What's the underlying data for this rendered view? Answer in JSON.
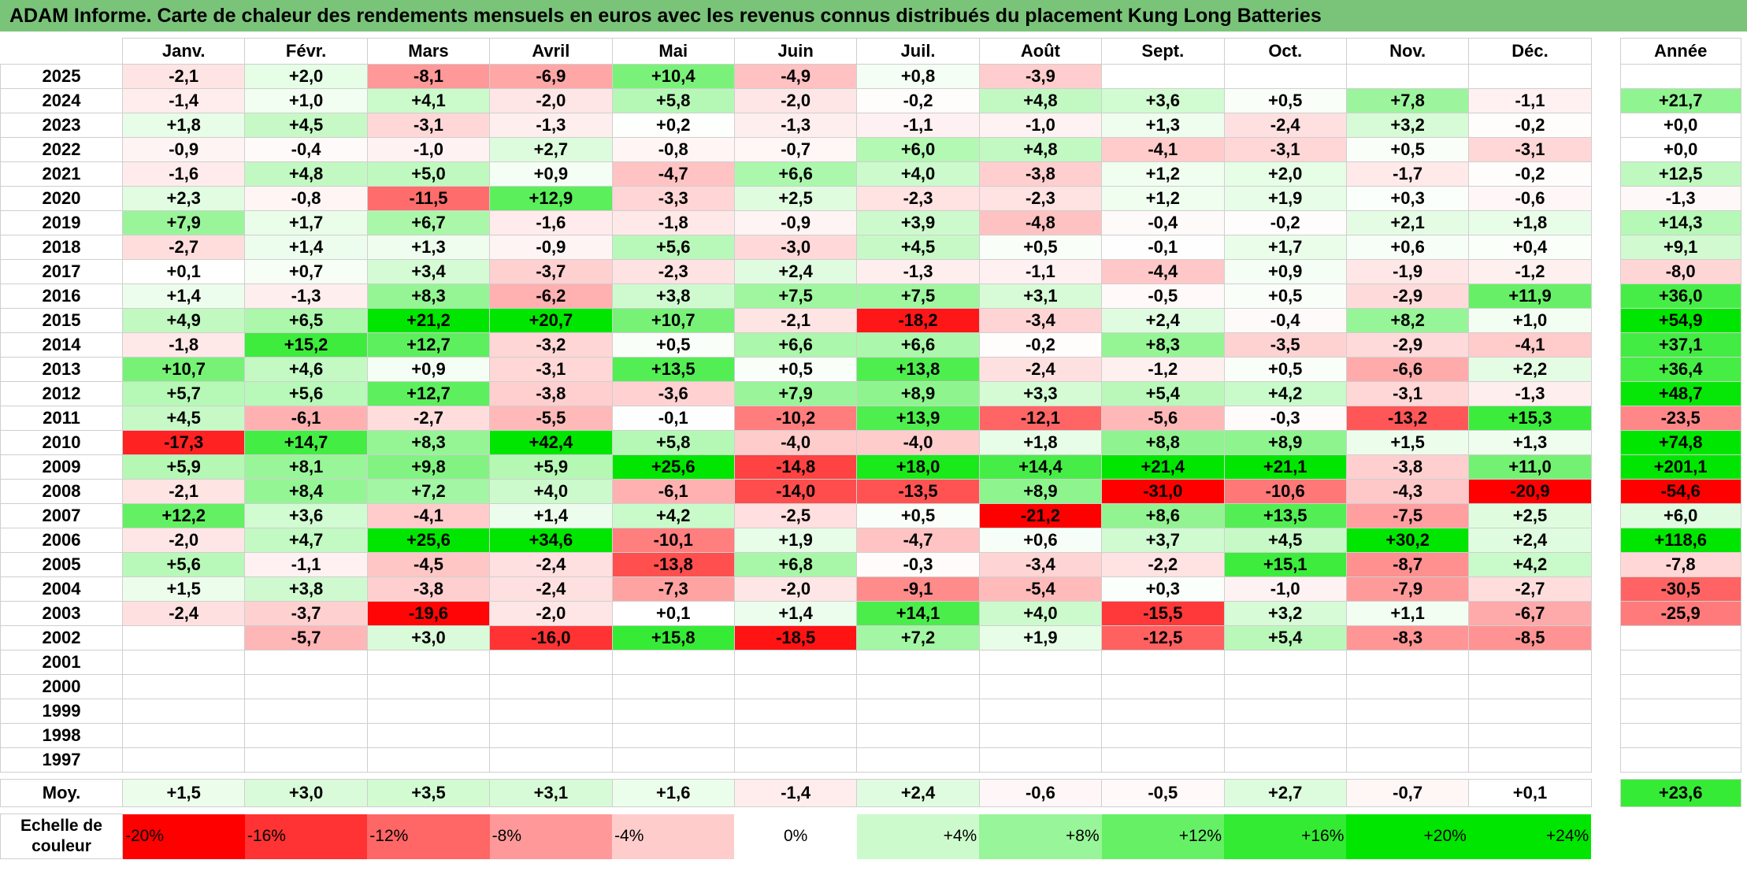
{
  "title": "ADAM Informe. Carte de chaleur des rendements mensuels en euros avec les revenus connus distribués du placement Kung Long Batteries",
  "chart_data": {
    "type": "heatmap",
    "title": "ADAM Informe. Carte de chaleur des rendements mensuels en euros avec les revenus connus distribués du placement Kung Long Batteries",
    "columns": [
      "Janv.",
      "Févr.",
      "Mars",
      "Avril",
      "Mai",
      "Juin",
      "Juil.",
      "Août",
      "Sept.",
      "Oct.",
      "Nov.",
      "Déc."
    ],
    "annual_label": "Année",
    "rows": [
      {
        "year": "2025",
        "values": [
          "-2,1",
          "+2,0",
          "-8,1",
          "-6,9",
          "+10,4",
          "-4,9",
          "+0,8",
          "-3,9",
          "",
          "",
          "",
          ""
        ],
        "annual": ""
      },
      {
        "year": "2024",
        "values": [
          "-1,4",
          "+1,0",
          "+4,1",
          "-2,0",
          "+5,8",
          "-2,0",
          "-0,2",
          "+4,8",
          "+3,6",
          "+0,5",
          "+7,8",
          "-1,1"
        ],
        "annual": "+21,7"
      },
      {
        "year": "2023",
        "values": [
          "+1,8",
          "+4,5",
          "-3,1",
          "-1,3",
          "+0,2",
          "-1,3",
          "-1,1",
          "-1,0",
          "+1,3",
          "-2,4",
          "+3,2",
          "-0,2"
        ],
        "annual": "+0,0"
      },
      {
        "year": "2022",
        "values": [
          "-0,9",
          "-0,4",
          "-1,0",
          "+2,7",
          "-0,8",
          "-0,7",
          "+6,0",
          "+4,8",
          "-4,1",
          "-3,1",
          "+0,5",
          "-3,1"
        ],
        "annual": "+0,0"
      },
      {
        "year": "2021",
        "values": [
          "-1,6",
          "+4,8",
          "+5,0",
          "+0,9",
          "-4,7",
          "+6,6",
          "+4,0",
          "-3,8",
          "+1,2",
          "+2,0",
          "-1,7",
          "-0,2"
        ],
        "annual": "+12,5"
      },
      {
        "year": "2020",
        "values": [
          "+2,3",
          "-0,8",
          "-11,5",
          "+12,9",
          "-3,3",
          "+2,5",
          "-2,3",
          "-2,3",
          "+1,2",
          "+1,9",
          "+0,3",
          "-0,6"
        ],
        "annual": "-1,3"
      },
      {
        "year": "2019",
        "values": [
          "+7,9",
          "+1,7",
          "+6,7",
          "-1,6",
          "-1,8",
          "-0,9",
          "+3,9",
          "-4,8",
          "-0,4",
          "-0,2",
          "+2,1",
          "+1,8"
        ],
        "annual": "+14,3"
      },
      {
        "year": "2018",
        "values": [
          "-2,7",
          "+1,4",
          "+1,3",
          "-0,9",
          "+5,6",
          "-3,0",
          "+4,5",
          "+0,5",
          "-0,1",
          "+1,7",
          "+0,6",
          "+0,4"
        ],
        "annual": "+9,1"
      },
      {
        "year": "2017",
        "values": [
          "+0,1",
          "+0,7",
          "+3,4",
          "-3,7",
          "-2,3",
          "+2,4",
          "-1,3",
          "-1,1",
          "-4,4",
          "+0,9",
          "-1,9",
          "-1,2"
        ],
        "annual": "-8,0"
      },
      {
        "year": "2016",
        "values": [
          "+1,4",
          "-1,3",
          "+8,3",
          "-6,2",
          "+3,8",
          "+7,5",
          "+7,5",
          "+3,1",
          "-0,5",
          "+0,5",
          "-2,9",
          "+11,9"
        ],
        "annual": "+36,0"
      },
      {
        "year": "2015",
        "values": [
          "+4,9",
          "+6,5",
          "+21,2",
          "+20,7",
          "+10,7",
          "-2,1",
          "-18,2",
          "-3,4",
          "+2,4",
          "-0,4",
          "+8,2",
          "+1,0"
        ],
        "annual": "+54,9"
      },
      {
        "year": "2014",
        "values": [
          "-1,8",
          "+15,2",
          "+12,7",
          "-3,2",
          "+0,5",
          "+6,6",
          "+6,6",
          "-0,2",
          "+8,3",
          "-3,5",
          "-2,9",
          "-4,1"
        ],
        "annual": "+37,1"
      },
      {
        "year": "2013",
        "values": [
          "+10,7",
          "+4,6",
          "+0,9",
          "-3,1",
          "+13,5",
          "+0,5",
          "+13,8",
          "-2,4",
          "-1,2",
          "+0,5",
          "-6,6",
          "+2,2"
        ],
        "annual": "+36,4"
      },
      {
        "year": "2012",
        "values": [
          "+5,7",
          "+5,6",
          "+12,7",
          "-3,8",
          "-3,6",
          "+7,9",
          "+8,9",
          "+3,3",
          "+5,4",
          "+4,2",
          "-3,1",
          "-1,3"
        ],
        "annual": "+48,7"
      },
      {
        "year": "2011",
        "values": [
          "+4,5",
          "-6,1",
          "-2,7",
          "-5,5",
          "-0,1",
          "-10,2",
          "+13,9",
          "-12,1",
          "-5,6",
          "-0,3",
          "-13,2",
          "+15,3"
        ],
        "annual": "-23,5"
      },
      {
        "year": "2010",
        "values": [
          "-17,3",
          "+14,7",
          "+8,3",
          "+42,4",
          "+5,8",
          "-4,0",
          "-4,0",
          "+1,8",
          "+8,8",
          "+8,9",
          "+1,5",
          "+1,3"
        ],
        "annual": "+74,8"
      },
      {
        "year": "2009",
        "values": [
          "+5,9",
          "+8,1",
          "+9,8",
          "+5,9",
          "+25,6",
          "-14,8",
          "+18,0",
          "+14,4",
          "+21,4",
          "+21,1",
          "-3,8",
          "+11,0"
        ],
        "annual": "+201,1"
      },
      {
        "year": "2008",
        "values": [
          "-2,1",
          "+8,4",
          "+7,2",
          "+4,0",
          "-6,1",
          "-14,0",
          "-13,5",
          "+8,9",
          "-31,0",
          "-10,6",
          "-4,3",
          "-20,9"
        ],
        "annual": "-54,6"
      },
      {
        "year": "2007",
        "values": [
          "+12,2",
          "+3,6",
          "-4,1",
          "+1,4",
          "+4,2",
          "-2,5",
          "+0,5",
          "-21,2",
          "+8,6",
          "+13,5",
          "-7,5",
          "+2,5"
        ],
        "annual": "+6,0"
      },
      {
        "year": "2006",
        "values": [
          "-2,0",
          "+4,7",
          "+25,6",
          "+34,6",
          "-10,1",
          "+1,9",
          "-4,7",
          "+0,6",
          "+3,7",
          "+4,5",
          "+30,2",
          "+2,4"
        ],
        "annual": "+118,6"
      },
      {
        "year": "2005",
        "values": [
          "+5,6",
          "-1,1",
          "-4,5",
          "-2,4",
          "-13,8",
          "+6,8",
          "-0,3",
          "-3,4",
          "-2,2",
          "+15,1",
          "-8,7",
          "+4,2"
        ],
        "annual": "-7,8"
      },
      {
        "year": "2004",
        "values": [
          "+1,5",
          "+3,8",
          "-3,8",
          "-2,4",
          "-7,3",
          "-2,0",
          "-9,1",
          "-5,4",
          "+0,3",
          "-1,0",
          "-7,9",
          "-2,7"
        ],
        "annual": "-30,5"
      },
      {
        "year": "2003",
        "values": [
          "-2,4",
          "-3,7",
          "-19,6",
          "-2,0",
          "+0,1",
          "+1,4",
          "+14,1",
          "+4,0",
          "-15,5",
          "+3,2",
          "+1,1",
          "-6,7"
        ],
        "annual": "-25,9"
      },
      {
        "year": "2002",
        "values": [
          "",
          "-5,7",
          "+3,0",
          "-16,0",
          "+15,8",
          "-18,5",
          "+7,2",
          "+1,9",
          "-12,5",
          "+5,4",
          "-8,3",
          "-8,5"
        ],
        "annual": ""
      },
      {
        "year": "2001",
        "values": [
          "",
          "",
          "",
          "",
          "",
          "",
          "",
          "",
          "",
          "",
          "",
          ""
        ],
        "annual": ""
      },
      {
        "year": "2000",
        "values": [
          "",
          "",
          "",
          "",
          "",
          "",
          "",
          "",
          "",
          "",
          "",
          ""
        ],
        "annual": ""
      },
      {
        "year": "1999",
        "values": [
          "",
          "",
          "",
          "",
          "",
          "",
          "",
          "",
          "",
          "",
          "",
          ""
        ],
        "annual": ""
      },
      {
        "year": "1998",
        "values": [
          "",
          "",
          "",
          "",
          "",
          "",
          "",
          "",
          "",
          "",
          "",
          ""
        ],
        "annual": ""
      },
      {
        "year": "1997",
        "values": [
          "",
          "",
          "",
          "",
          "",
          "",
          "",
          "",
          "",
          "",
          "",
          ""
        ],
        "annual": ""
      }
    ],
    "average": {
      "label": "Moy.",
      "values": [
        "+1,5",
        "+3,0",
        "+3,5",
        "+3,1",
        "+1,6",
        "-1,4",
        "+2,4",
        "-0,6",
        "-0,5",
        "+2,7",
        "-0,7",
        "+0,1"
      ],
      "annual": "+23,6"
    },
    "scale": {
      "label": "Echelle de couleur",
      "stops": [
        "-20%",
        "-16%",
        "-12%",
        "-8%",
        "-4%",
        "0%",
        "+4%",
        "+8%",
        "+12%",
        "+16%",
        "+20%",
        "+24%"
      ]
    },
    "colors": {
      "title_bg": "#7ac47a",
      "negative_max": "#ff0000",
      "neutral": "#ffffff",
      "positive_max": "#00e600"
    }
  }
}
